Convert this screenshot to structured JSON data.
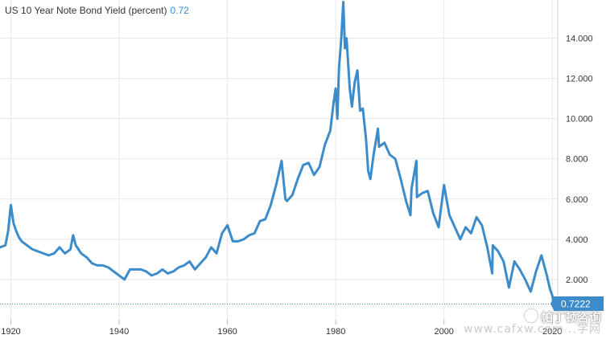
{
  "title": {
    "label": "US 10 Year Note Bond Yield (percent)",
    "current_value": "0.72"
  },
  "last_value_badge": "0.7222",
  "watermark": {
    "top": "帕丁顿咨询",
    "bottom": "www.cafxw.com   ..学网"
  },
  "colors": {
    "line": "#3c8ccb",
    "badge": "#3c8ccb",
    "grid": "#e8e8e8",
    "axis_text": "#333333"
  },
  "chart_data": {
    "type": "line",
    "title": "US 10 Year Note Bond Yield (percent)",
    "xlabel": "",
    "ylabel": "",
    "xlim": [
      1918,
      2021
    ],
    "ylim": [
      0,
      15.9
    ],
    "x_ticks": [
      "1920",
      "1940",
      "1960",
      "1980",
      "2000",
      "2020"
    ],
    "y_ticks": [
      "2.000",
      "4.000",
      "6.000",
      "8.000",
      "10.000",
      "12.000",
      "14.000"
    ],
    "grid": true,
    "legend": "none",
    "series": [
      {
        "x": [
          1918,
          1919,
          1919.5,
          1920,
          1920.5,
          1921,
          1921.5,
          1922,
          1923,
          1924,
          1925,
          1926,
          1927,
          1928,
          1929,
          1930,
          1931,
          1931.5,
          1932,
          1933,
          1934,
          1935,
          1936,
          1937,
          1938,
          1939,
          1940,
          1941,
          1942,
          1943,
          1944,
          1945,
          1946,
          1947,
          1948,
          1949,
          1950,
          1951,
          1952,
          1953,
          1954,
          1955,
          1956,
          1957,
          1958,
          1959,
          1960,
          1961,
          1962,
          1963,
          1964,
          1965,
          1966,
          1967,
          1968,
          1969,
          1970,
          1970.7,
          1971,
          1972,
          1973,
          1974,
          1975,
          1976,
          1977,
          1978,
          1979,
          1979.6,
          1980,
          1980.3,
          1980.6,
          1981,
          1981.4,
          1981.7,
          1982,
          1982.6,
          1983,
          1983.5,
          1984,
          1984.5,
          1985,
          1985.6,
          1986,
          1986.4,
          1987,
          1987.8,
          1988,
          1989,
          1990,
          1991,
          1992,
          1993,
          1993.8,
          1994,
          1994.9,
          1995,
          1996,
          1997,
          1998,
          1999,
          2000,
          2001,
          2002,
          2003,
          2004,
          2005,
          2006,
          2007,
          2008,
          2008.9,
          2009,
          2010,
          2011,
          2012,
          2013,
          2014,
          2015,
          2016,
          2017,
          2018,
          2019,
          2019.6,
          2020,
          2020.3
        ],
        "values": [
          3.6,
          3.7,
          4.4,
          5.7,
          4.8,
          4.4,
          4.1,
          3.9,
          3.7,
          3.5,
          3.4,
          3.3,
          3.2,
          3.3,
          3.6,
          3.3,
          3.5,
          4.2,
          3.7,
          3.3,
          3.1,
          2.8,
          2.7,
          2.7,
          2.6,
          2.4,
          2.2,
          2.0,
          2.5,
          2.5,
          2.5,
          2.4,
          2.2,
          2.3,
          2.5,
          2.3,
          2.4,
          2.6,
          2.7,
          2.9,
          2.5,
          2.8,
          3.1,
          3.6,
          3.3,
          4.3,
          4.7,
          3.9,
          3.9,
          4.0,
          4.2,
          4.3,
          4.9,
          5.0,
          5.7,
          6.7,
          7.9,
          6.0,
          5.9,
          6.2,
          7.0,
          7.7,
          7.8,
          7.2,
          7.6,
          8.7,
          9.4,
          10.8,
          11.5,
          10.0,
          12.5,
          13.9,
          15.8,
          13.5,
          14.0,
          11.5,
          10.6,
          11.8,
          12.4,
          10.4,
          10.5,
          9.0,
          7.4,
          7.0,
          8.2,
          9.5,
          8.6,
          8.8,
          8.2,
          8.0,
          7.0,
          5.9,
          5.2,
          6.5,
          7.9,
          6.1,
          6.3,
          6.4,
          5.3,
          4.6,
          6.7,
          5.2,
          4.6,
          4.0,
          4.6,
          4.3,
          5.1,
          4.7,
          3.6,
          2.3,
          3.7,
          3.4,
          2.9,
          1.6,
          2.9,
          2.5,
          2.0,
          1.4,
          2.4,
          3.2,
          2.2,
          1.5,
          1.2,
          0.72
        ]
      }
    ]
  }
}
